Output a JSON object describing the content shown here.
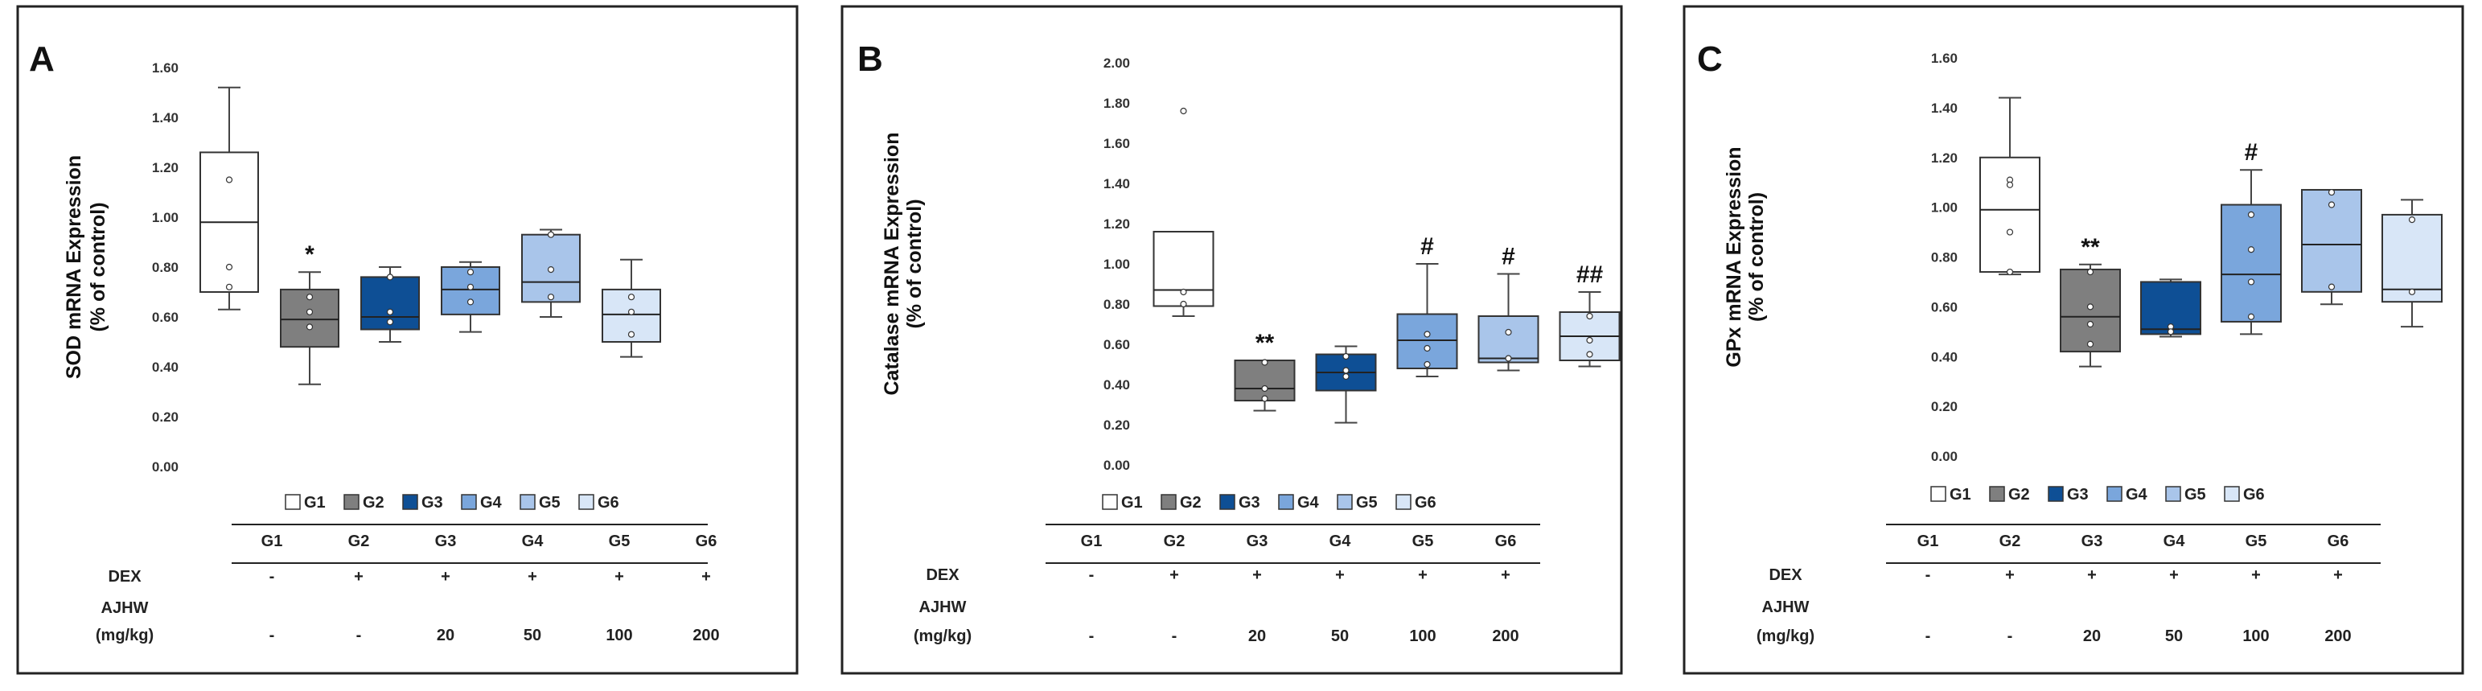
{
  "colors": {
    "G1": "#ffffff",
    "G2": "#7f7f7f",
    "G3": "#0e4f95",
    "G4": "#7aa6dc",
    "G5": "#a9c5ea",
    "G6": "#d8e6f7",
    "outline": "#3a3a3a"
  },
  "groups": [
    "G1",
    "G2",
    "G3",
    "G4",
    "G5",
    "G6"
  ],
  "table": {
    "header": [
      "G1",
      "G2",
      "G3",
      "G4",
      "G5",
      "G6"
    ],
    "dex_label": "DEX",
    "dex": [
      "-",
      "+",
      "+",
      "+",
      "+",
      "+"
    ],
    "ajhw_label_line1": "AJHW",
    "ajhw_label_line2": "(mg/kg)",
    "ajhw": [
      "-",
      "-",
      "20",
      "50",
      "100",
      "200"
    ]
  },
  "chart_data": [
    {
      "panel": "A",
      "type": "box",
      "ylabel_line1": "SOD mRNA Expression",
      "ylabel_line2": "(% of control)",
      "ylim": [
        0,
        1.6
      ],
      "yticks": [
        "0.00",
        "0.20",
        "0.40",
        "0.60",
        "0.80",
        "1.00",
        "1.20",
        "1.40",
        "1.60"
      ],
      "categories": [
        "G1",
        "G2",
        "G3",
        "G4",
        "G5",
        "G6"
      ],
      "boxes": [
        {
          "group": "G1",
          "min": 0.63,
          "q1": 0.7,
          "median": 0.98,
          "q3": 1.26,
          "max": 1.52,
          "points": [
            1.15,
            0.8,
            0.72
          ],
          "label": ""
        },
        {
          "group": "G2",
          "min": 0.33,
          "q1": 0.48,
          "median": 0.59,
          "q3": 0.71,
          "max": 0.78,
          "points": [
            0.68,
            0.62,
            0.56
          ],
          "label": "*"
        },
        {
          "group": "G3",
          "min": 0.5,
          "q1": 0.55,
          "median": 0.6,
          "q3": 0.76,
          "max": 0.8,
          "points": [
            0.76,
            0.62,
            0.58
          ],
          "label": ""
        },
        {
          "group": "G4",
          "min": 0.54,
          "q1": 0.61,
          "median": 0.71,
          "q3": 0.8,
          "max": 0.82,
          "points": [
            0.78,
            0.72,
            0.66
          ],
          "label": ""
        },
        {
          "group": "G5",
          "min": 0.6,
          "q1": 0.66,
          "median": 0.74,
          "q3": 0.93,
          "max": 0.95,
          "points": [
            0.93,
            0.79,
            0.68
          ],
          "label": ""
        },
        {
          "group": "G6",
          "min": 0.44,
          "q1": 0.5,
          "median": 0.61,
          "q3": 0.71,
          "max": 0.83,
          "points": [
            0.68,
            0.62,
            0.53
          ],
          "label": ""
        }
      ]
    },
    {
      "panel": "B",
      "type": "box",
      "ylabel_line1": "Catalase mRNA Expression",
      "ylabel_line2": "(% of control)",
      "ylim": [
        0,
        2.0
      ],
      "yticks": [
        "0.00",
        "0.20",
        "0.40",
        "0.60",
        "0.80",
        "1.00",
        "1.20",
        "1.40",
        "1.60",
        "1.80",
        "2.00"
      ],
      "categories": [
        "G1",
        "G2",
        "G3",
        "G4",
        "G5",
        "G6"
      ],
      "boxes": [
        {
          "group": "G1",
          "min": 0.74,
          "q1": 0.79,
          "median": 0.87,
          "q3": 1.16,
          "max": 1.16,
          "points": [
            1.76,
            0.86,
            0.8
          ],
          "label": ""
        },
        {
          "group": "G2",
          "min": 0.27,
          "q1": 0.32,
          "median": 0.38,
          "q3": 0.52,
          "max": 0.52,
          "points": [
            0.51,
            0.38,
            0.33
          ],
          "label": "**"
        },
        {
          "group": "G3",
          "min": 0.21,
          "q1": 0.37,
          "median": 0.46,
          "q3": 0.55,
          "max": 0.59,
          "points": [
            0.54,
            0.47,
            0.44
          ],
          "label": ""
        },
        {
          "group": "G4",
          "min": 0.44,
          "q1": 0.48,
          "median": 0.62,
          "q3": 0.75,
          "max": 1.0,
          "points": [
            0.65,
            0.58,
            0.5
          ],
          "label": "#"
        },
        {
          "group": "G5",
          "min": 0.47,
          "q1": 0.51,
          "median": 0.53,
          "q3": 0.74,
          "max": 0.95,
          "points": [
            0.66,
            0.53
          ],
          "label": "#"
        },
        {
          "group": "G6",
          "min": 0.49,
          "q1": 0.52,
          "median": 0.64,
          "q3": 0.76,
          "max": 0.86,
          "points": [
            0.74,
            0.62,
            0.55
          ],
          "label": "##"
        }
      ]
    },
    {
      "panel": "C",
      "type": "box",
      "ylabel_line1": "GPx mRNA Expression",
      "ylabel_line2": "(% of control)",
      "ylim": [
        0,
        1.6
      ],
      "yticks": [
        "0.00",
        "0.20",
        "0.40",
        "0.60",
        "0.80",
        "1.00",
        "1.20",
        "1.40",
        "1.60"
      ],
      "categories": [
        "G1",
        "G2",
        "G3",
        "G4",
        "G5",
        "G6"
      ],
      "boxes": [
        {
          "group": "G1",
          "min": 0.73,
          "q1": 0.74,
          "median": 0.99,
          "q3": 1.2,
          "max": 1.44,
          "points": [
            1.11,
            1.09,
            0.9,
            0.74
          ],
          "label": ""
        },
        {
          "group": "G2",
          "min": 0.36,
          "q1": 0.42,
          "median": 0.56,
          "q3": 0.75,
          "max": 0.77,
          "points": [
            0.74,
            0.6,
            0.53,
            0.45
          ],
          "label": "**"
        },
        {
          "group": "G3",
          "min": 0.48,
          "q1": 0.49,
          "median": 0.51,
          "q3": 0.7,
          "max": 0.71,
          "points": [
            0.52,
            0.5
          ],
          "label": ""
        },
        {
          "group": "G4",
          "min": 0.49,
          "q1": 0.54,
          "median": 0.73,
          "q3": 1.01,
          "max": 1.15,
          "points": [
            0.97,
            0.83,
            0.7,
            0.56
          ],
          "label": "#"
        },
        {
          "group": "G5",
          "min": 0.61,
          "q1": 0.66,
          "median": 0.85,
          "q3": 1.07,
          "max": 1.07,
          "points": [
            1.06,
            1.01,
            0.68
          ],
          "label": ""
        },
        {
          "group": "G6",
          "min": 0.52,
          "q1": 0.62,
          "median": 0.67,
          "q3": 0.97,
          "max": 1.03,
          "points": [
            0.95,
            0.66
          ],
          "label": ""
        }
      ]
    }
  ]
}
